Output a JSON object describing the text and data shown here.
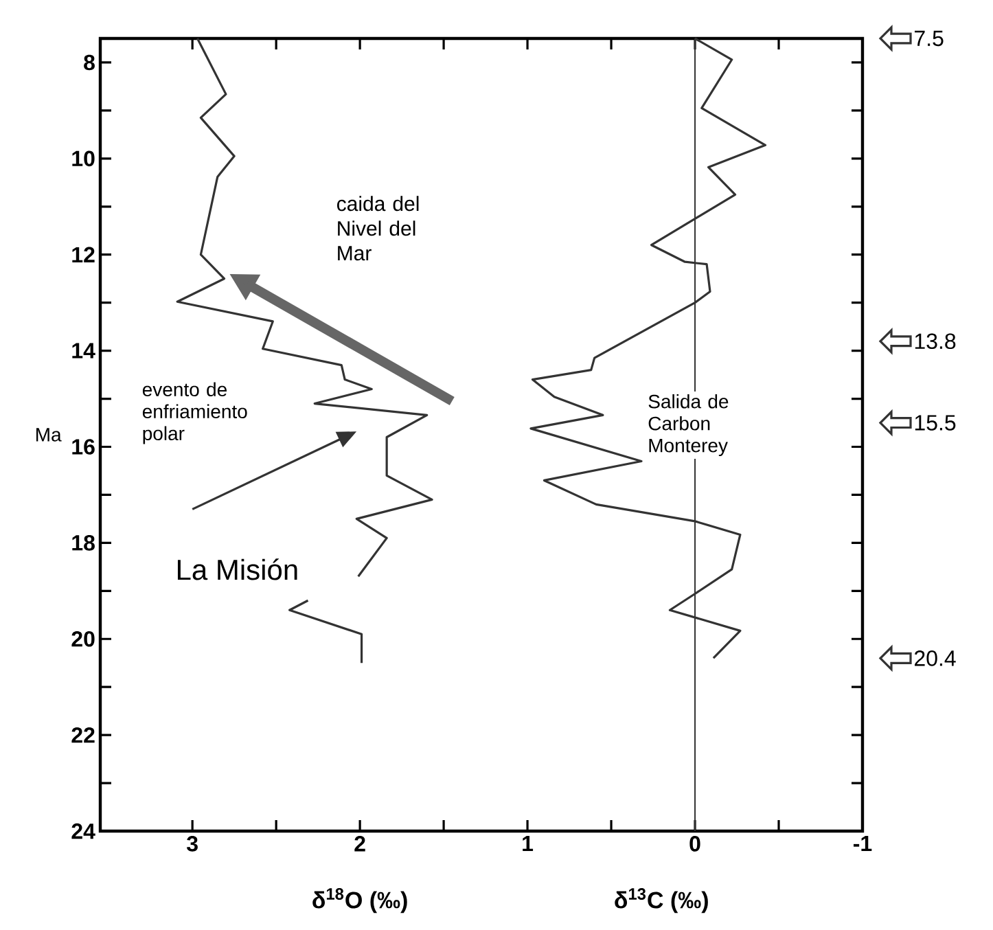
{
  "chart_data": {
    "type": "line",
    "xlabel": "δ$^{18}$O (‰)",
    "ylabel": "Ma",
    "xlim": [
      3.55,
      -1
    ],
    "ylim": [
      24,
      7.5
    ],
    "xticks": [
      3,
      {
        "value": 2.5,
        "label": null
      },
      2,
      {
        "value": 1.5,
        "label": null
      },
      1,
      {
        "value": 0.5,
        "label": null
      },
      0,
      {
        "value": -0.5,
        "label": null
      },
      -1
    ],
    "yticks": [
      8,
      {
        "value": 9,
        "label": null
      },
      10,
      {
        "value": 11,
        "label": null
      },
      12,
      {
        "value": 13,
        "label": null
      },
      14,
      {
        "value": 15,
        "label": null
      },
      16,
      {
        "value": 17,
        "label": null
      },
      18,
      {
        "value": 19,
        "label": null
      },
      20,
      {
        "value": 21,
        "label": null
      },
      22,
      {
        "value": 23,
        "label": null
      },
      24
    ],
    "series": [
      {
        "color": "#333333",
        "x": [
          2.97,
          2.8,
          2.95,
          2.75,
          2.85,
          2.95,
          2.81,
          3.09,
          2.52,
          2.58,
          2.11,
          2.09,
          1.93,
          2.27,
          1.6,
          1.84,
          1.84,
          1.57,
          2.02,
          1.84,
          2.01,
          null,
          2.31,
          2.42,
          1.99,
          1.99
        ],
        "values": [
          7.5,
          8.66,
          9.15,
          9.95,
          10.38,
          12.0,
          12.5,
          12.98,
          13.39,
          13.96,
          14.3,
          14.6,
          14.8,
          15.1,
          15.34,
          15.8,
          16.6,
          17.1,
          17.5,
          17.9,
          18.7,
          null,
          19.2,
          19.4,
          19.9,
          20.5
        ]
      },
      {
        "color": "#333333",
        "x": [
          0.0,
          -0.22,
          -0.04,
          -0.42,
          -0.08,
          -0.24,
          0.26,
          0.06,
          -0.07,
          -0.09,
          0.0,
          0.6,
          0.62,
          0.97,
          0.84,
          0.55,
          0.98,
          0.32,
          0.9,
          0.59,
          0.0,
          -0.27,
          -0.22,
          0.0,
          0.15,
          -0.27,
          -0.11
        ],
        "values": [
          7.5,
          7.94,
          8.95,
          9.72,
          10.18,
          10.75,
          11.8,
          12.15,
          12.2,
          12.77,
          13.0,
          14.15,
          14.4,
          14.6,
          14.96,
          15.34,
          15.62,
          16.3,
          16.7,
          17.2,
          17.55,
          17.83,
          18.55,
          19.06,
          19.4,
          19.83,
          20.4
        ]
      }
    ],
    "ref_lines": [
      {
        "axis": "x",
        "value": 0,
        "color": "#333333"
      }
    ],
    "annotations": [
      "caida del Nivel del Mar",
      "evento de enfriamiento polar",
      "La Misión",
      "Salida de Carbon Monterey",
      "δ$^{13}$C (‰)",
      "7.5",
      "13.8",
      "15.5",
      "20.4"
    ]
  }
}
